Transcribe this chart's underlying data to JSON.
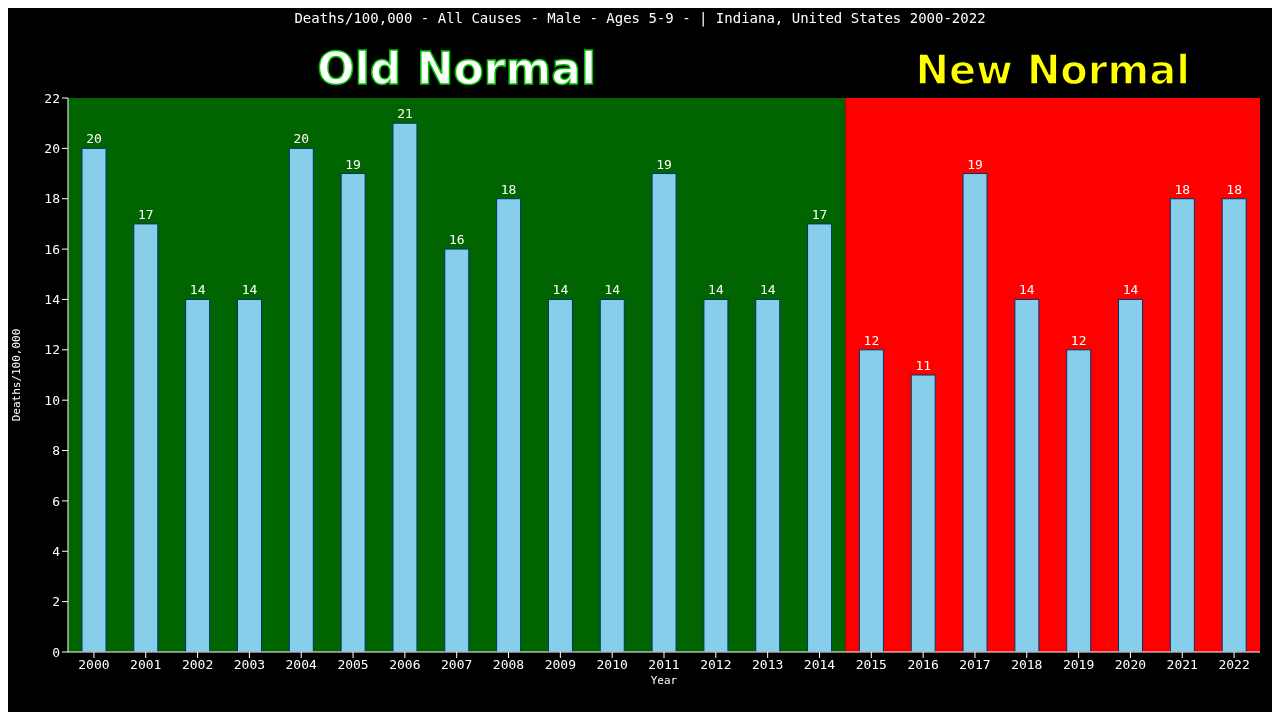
{
  "chart_data": {
    "type": "bar",
    "title": "Deaths/100,000 - All Causes - Male - Ages 5-9 -  | Indiana, United States 2000-2022",
    "xlabel": "Year",
    "ylabel": "Deaths/100,000",
    "categories": [
      "2000",
      "2001",
      "2002",
      "2003",
      "2004",
      "2005",
      "2006",
      "2007",
      "2008",
      "2009",
      "2010",
      "2011",
      "2012",
      "2013",
      "2014",
      "2015",
      "2016",
      "2017",
      "2018",
      "2019",
      "2020",
      "2021",
      "2022"
    ],
    "values": [
      20,
      17,
      14,
      14,
      20,
      19,
      21,
      16,
      18,
      14,
      14,
      19,
      14,
      14,
      17,
      12,
      11,
      19,
      14,
      12,
      14,
      18,
      18
    ],
    "color": "#87ceeb",
    "data_labels": true,
    "ylim": [
      0,
      22
    ],
    "yticks": [
      0,
      2,
      4,
      6,
      8,
      10,
      12,
      14,
      16,
      18,
      20,
      22
    ],
    "grid": false,
    "legend": false,
    "bands": [
      {
        "axis": "x",
        "from": "2000",
        "to": "2014",
        "label": "Old Normal",
        "color": "#006400"
      },
      {
        "axis": "x",
        "from": "2015",
        "to": "2022",
        "label": "New Normal",
        "color": "#ff0000"
      }
    ]
  }
}
